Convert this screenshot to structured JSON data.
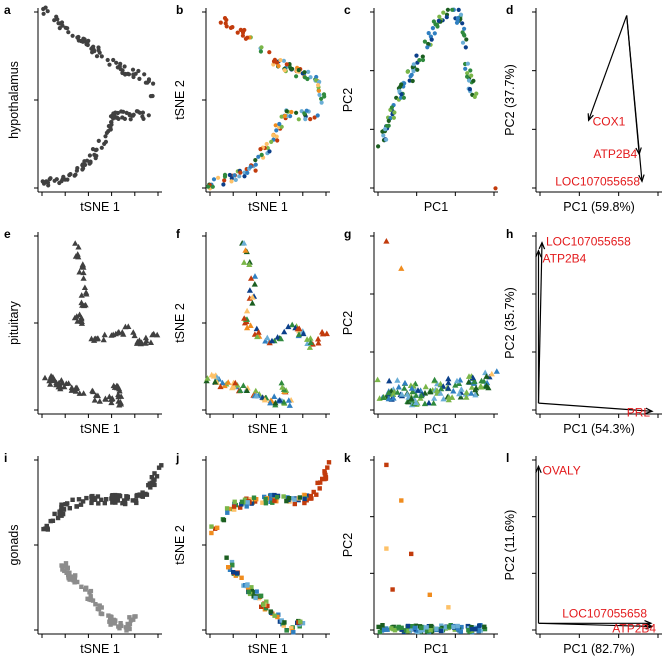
{
  "figure": {
    "rows": [
      {
        "title": "hypothalamus",
        "shape": "circle"
      },
      {
        "title": "pituitary",
        "shape": "triangle"
      },
      {
        "title": "gonads",
        "shape": "square"
      }
    ],
    "panel_letters": [
      "a",
      "b",
      "c",
      "d",
      "e",
      "f",
      "g",
      "h",
      "i",
      "j",
      "k",
      "l"
    ],
    "axis_titles": {
      "tsne_x": "tSNE 1",
      "tsne_y": "tSNE 2",
      "pc_x": "PC1",
      "pc_y": "PC2"
    },
    "palette": {
      "gray_dark": "#404040",
      "gray_light": "#8c8c8c",
      "loading_label": "#e31a1c",
      "treatment_colors": [
        "#c23b0c",
        "#f08c1e",
        "#fdc168",
        "#6aaed6",
        "#2f7fc1",
        "#0b3f8a",
        "#2f8a3e",
        "#7ab648",
        "#1b5e20"
      ]
    }
  },
  "chart_data": [
    {
      "panel": "a",
      "type": "scatter",
      "xlabel": "tSNE 1",
      "ylabel": "",
      "row": "hypothalamus",
      "coloring": "two gray clusters",
      "marker": "circle"
    },
    {
      "panel": "b",
      "type": "scatter",
      "xlabel": "tSNE 1",
      "ylabel": "tSNE 2",
      "coloring": "by treatment",
      "marker": "circle"
    },
    {
      "panel": "c",
      "type": "scatter",
      "xlabel": "PC1",
      "ylabel": "PC2",
      "coloring": "by treatment",
      "marker": "circle"
    },
    {
      "panel": "d",
      "type": "biplot",
      "xlabel": "PC1 (59.8%)",
      "ylabel": "PC2 (37.7%)",
      "loadings": [
        {
          "name": "COX1",
          "vector": [
            -0.55,
            -0.62
          ]
        },
        {
          "name": "ATP2B4",
          "vector": [
            0.18,
            -0.82
          ]
        },
        {
          "name": "LOC107055658",
          "vector": [
            0.22,
            -0.98
          ]
        }
      ]
    },
    {
      "panel": "e",
      "type": "scatter",
      "xlabel": "tSNE 1",
      "ylabel": "",
      "row": "pituitary",
      "coloring": "two gray clusters",
      "marker": "triangle"
    },
    {
      "panel": "f",
      "type": "scatter",
      "xlabel": "tSNE 1",
      "ylabel": "tSNE 2",
      "coloring": "by treatment",
      "marker": "triangle"
    },
    {
      "panel": "g",
      "type": "scatter",
      "xlabel": "PC1",
      "ylabel": "PC2",
      "coloring": "by treatment",
      "marker": "triangle"
    },
    {
      "panel": "h",
      "type": "biplot",
      "xlabel": "PC1 (54.3%)",
      "ylabel": "PC2 (35.7%)",
      "loadings": [
        {
          "name": "LOC107055658",
          "vector": [
            0.03,
            0.98
          ]
        },
        {
          "name": "ATP2B4",
          "vector": [
            0.0,
            0.93
          ]
        },
        {
          "name": "PRL",
          "vector": [
            0.98,
            -0.05
          ]
        }
      ]
    },
    {
      "panel": "i",
      "type": "scatter",
      "xlabel": "tSNE 1",
      "ylabel": "",
      "row": "gonads",
      "coloring": "two gray clusters",
      "marker": "square"
    },
    {
      "panel": "j",
      "type": "scatter",
      "xlabel": "tSNE 1",
      "ylabel": "tSNE 2",
      "coloring": "by treatment",
      "marker": "square"
    },
    {
      "panel": "k",
      "type": "scatter",
      "xlabel": "PC1",
      "ylabel": "PC2",
      "coloring": "by treatment",
      "marker": "square"
    },
    {
      "panel": "l",
      "type": "biplot",
      "xlabel": "PC1 (82.7%)",
      "ylabel": "PC2 (11.6%)",
      "loadings": [
        {
          "name": "OVALY",
          "vector": [
            0.0,
            0.98
          ]
        },
        {
          "name": "LOC107055658",
          "vector": [
            0.97,
            0.0
          ]
        },
        {
          "name": "ATP2B4",
          "vector": [
            0.98,
            -0.02
          ]
        }
      ]
    }
  ]
}
